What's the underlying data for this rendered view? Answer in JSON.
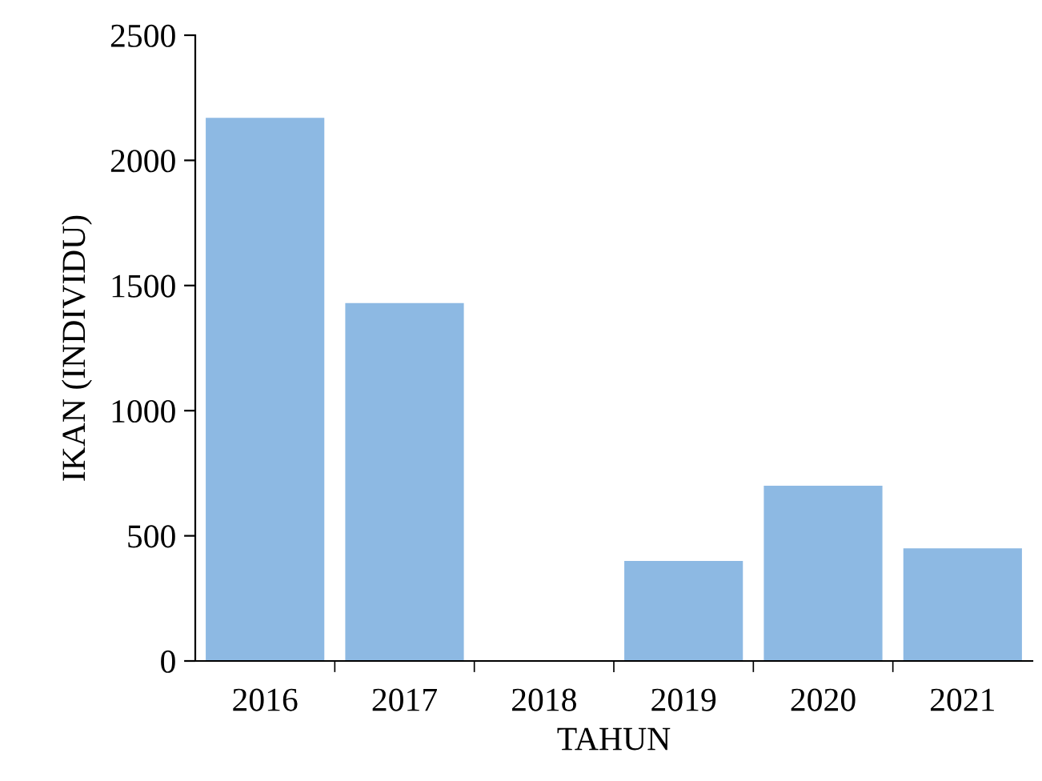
{
  "chart_data": {
    "type": "bar",
    "xlabel": "TAHUN",
    "ylabel": "IKAN (INDIVIDU)",
    "categories": [
      "2016",
      "2017",
      "2018",
      "2019",
      "2020",
      "2021"
    ],
    "values": [
      2170,
      1430,
      0,
      400,
      700,
      450
    ],
    "color": "#8db9e3",
    "ylim": [
      0,
      2500
    ],
    "yticks": [
      0,
      500,
      1000,
      1500,
      2000,
      2500
    ],
    "grid": false,
    "legend": false
  }
}
